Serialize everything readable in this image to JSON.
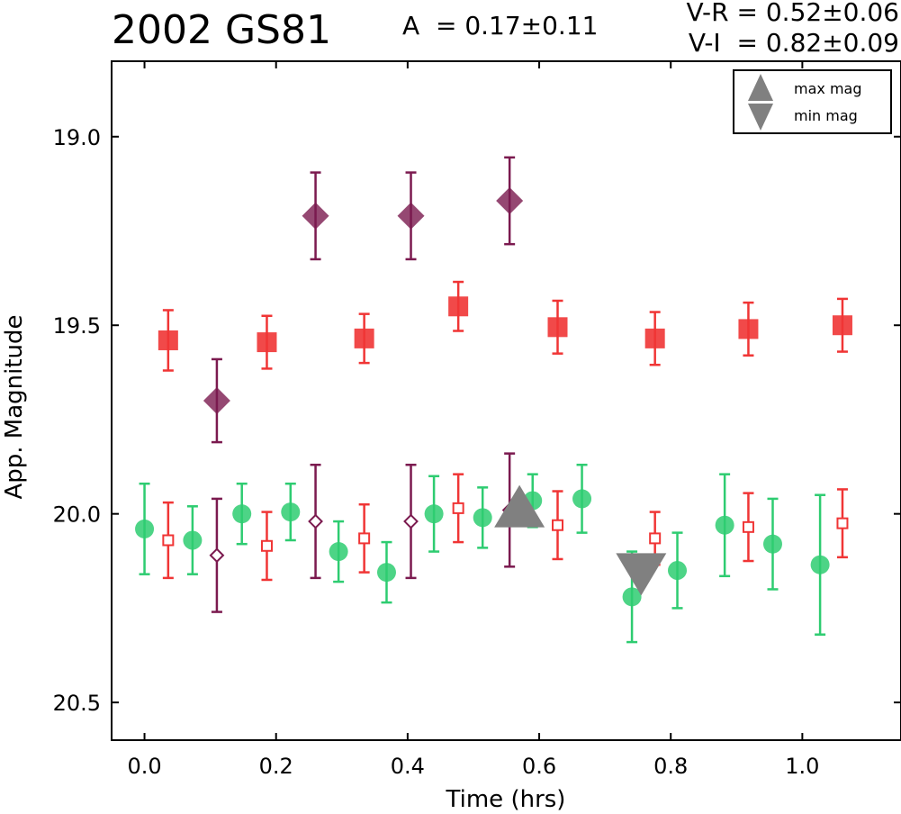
{
  "header": {
    "title": "2002 GS81",
    "amplitude": "A  = 0.17±0.11",
    "color_vr": "V-R = 0.52±0.06",
    "color_vi": "V-I  = 0.82±0.09"
  },
  "chart_data": {
    "type": "scatter",
    "xlabel": "Time (hrs)",
    "ylabel": "App. Magnitude",
    "xlim": [
      -0.05,
      1.15
    ],
    "ylim": [
      20.6,
      18.8
    ],
    "y_inverted": true,
    "xticks": [
      0.0,
      0.2,
      0.4,
      0.6,
      0.8,
      1.0
    ],
    "xtick_labels": [
      "0.0",
      "0.2",
      "0.4",
      "0.6",
      "0.8",
      "1.0"
    ],
    "yticks": [
      19.0,
      19.5,
      20.0,
      20.5
    ],
    "ytick_labels": [
      "19.0",
      "19.5",
      "20.0",
      "20.5"
    ],
    "legend": {
      "placement": "top-right",
      "entries": [
        {
          "label": "max mag",
          "marker": "triangle-up",
          "color": "#808080"
        },
        {
          "label": "min mag",
          "marker": "triangle-down",
          "color": "#808080"
        }
      ]
    },
    "series": [
      {
        "marker": "diamond-filled",
        "color": "#7b1a4f",
        "points": [
          {
            "x": 0.11,
            "y": 19.7,
            "err": 0.11
          },
          {
            "x": 0.26,
            "y": 19.21,
            "err": 0.115
          },
          {
            "x": 0.405,
            "y": 19.21,
            "err": 0.115
          },
          {
            "x": 0.555,
            "y": 19.17,
            "err": 0.115
          }
        ]
      },
      {
        "marker": "square-filled",
        "color": "#f03535",
        "points": [
          {
            "x": 0.036,
            "y": 19.54,
            "err": 0.08
          },
          {
            "x": 0.186,
            "y": 19.545,
            "err": 0.07
          },
          {
            "x": 0.334,
            "y": 19.535,
            "err": 0.065
          },
          {
            "x": 0.477,
            "y": 19.45,
            "err": 0.065
          },
          {
            "x": 0.628,
            "y": 19.505,
            "err": 0.07
          },
          {
            "x": 0.776,
            "y": 19.535,
            "err": 0.07
          },
          {
            "x": 0.918,
            "y": 19.51,
            "err": 0.07
          },
          {
            "x": 1.061,
            "y": 19.5,
            "err": 0.07
          }
        ]
      },
      {
        "marker": "circle-filled",
        "color": "#2ecc71",
        "points": [
          {
            "x": 0.0,
            "y": 20.04,
            "err": 0.12
          },
          {
            "x": 0.073,
            "y": 20.07,
            "err": 0.09
          },
          {
            "x": 0.148,
            "y": 20.0,
            "err": 0.08
          },
          {
            "x": 0.222,
            "y": 19.995,
            "err": 0.075
          },
          {
            "x": 0.295,
            "y": 20.1,
            "err": 0.08
          },
          {
            "x": 0.368,
            "y": 20.155,
            "err": 0.08
          },
          {
            "x": 0.44,
            "y": 20.0,
            "err": 0.1
          },
          {
            "x": 0.514,
            "y": 20.01,
            "err": 0.08
          },
          {
            "x": 0.59,
            "y": 19.965,
            "err": 0.07
          },
          {
            "x": 0.665,
            "y": 19.96,
            "err": 0.09
          },
          {
            "x": 0.741,
            "y": 20.22,
            "err": 0.12
          },
          {
            "x": 0.81,
            "y": 20.15,
            "err": 0.1
          },
          {
            "x": 0.882,
            "y": 20.03,
            "err": 0.135
          },
          {
            "x": 0.955,
            "y": 20.08,
            "err": 0.12
          },
          {
            "x": 1.027,
            "y": 20.135,
            "err": 0.185
          }
        ]
      },
      {
        "marker": "square-open",
        "color": "#f03535",
        "points": [
          {
            "x": 0.036,
            "y": 20.07,
            "err": 0.1
          },
          {
            "x": 0.186,
            "y": 20.085,
            "err": 0.09
          },
          {
            "x": 0.334,
            "y": 20.065,
            "err": 0.09
          },
          {
            "x": 0.477,
            "y": 19.985,
            "err": 0.09
          },
          {
            "x": 0.628,
            "y": 20.03,
            "err": 0.09
          },
          {
            "x": 0.776,
            "y": 20.065,
            "err": 0.07
          },
          {
            "x": 0.918,
            "y": 20.035,
            "err": 0.09
          },
          {
            "x": 1.061,
            "y": 20.025,
            "err": 0.09
          }
        ]
      },
      {
        "marker": "diamond-open",
        "color": "#7b1a4f",
        "points": [
          {
            "x": 0.11,
            "y": 20.11,
            "err": 0.15
          },
          {
            "x": 0.26,
            "y": 20.02,
            "err": 0.15
          },
          {
            "x": 0.405,
            "y": 20.02,
            "err": 0.15
          },
          {
            "x": 0.555,
            "y": 19.99,
            "err": 0.15
          }
        ]
      },
      {
        "name": "max mag",
        "marker": "triangle-up",
        "color": "#808080",
        "points": [
          {
            "x": 0.57,
            "y": 19.995
          }
        ]
      },
      {
        "name": "min mag",
        "marker": "triangle-down",
        "color": "#808080",
        "points": [
          {
            "x": 0.755,
            "y": 20.145
          }
        ]
      }
    ]
  }
}
